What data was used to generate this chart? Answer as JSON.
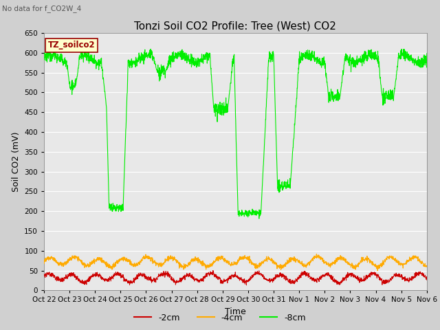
{
  "title": "Tonzi Soil CO2 Profile: Tree (West) CO2",
  "no_data_text": "No data for f_CO2W_4",
  "ylabel": "Soil CO2 (mV)",
  "xlabel": "Time",
  "ylim": [
    0,
    650
  ],
  "yticks": [
    0,
    50,
    100,
    150,
    200,
    250,
    300,
    350,
    400,
    450,
    500,
    550,
    600,
    650
  ],
  "fig_bg_color": "#d0d0d0",
  "plot_bg_color": "#e8e8e8",
  "legend_label_text": "TZ_soilco2",
  "legend_box_color": "#ffffcc",
  "legend_box_border": "#990000",
  "line_colors": {
    "neg2cm": "#cc0000",
    "neg4cm": "#ffaa00",
    "neg8cm": "#00ee00"
  },
  "line_labels": {
    "neg2cm": "-2cm",
    "neg4cm": "-4cm",
    "neg8cm": "-8cm"
  },
  "x_tick_labels": [
    "Oct 22",
    "Oct 23",
    "Oct 24",
    "Oct 25",
    "Oct 26",
    "Oct 27",
    "Oct 28",
    "Oct 29",
    "Oct 30",
    "Oct 31",
    "Nov 1",
    "Nov 2",
    "Nov 3",
    "Nov 4",
    "Nov 5",
    "Nov 6"
  ],
  "num_days": 15,
  "title_fontsize": 11,
  "tick_fontsize": 7.5,
  "label_fontsize": 9
}
